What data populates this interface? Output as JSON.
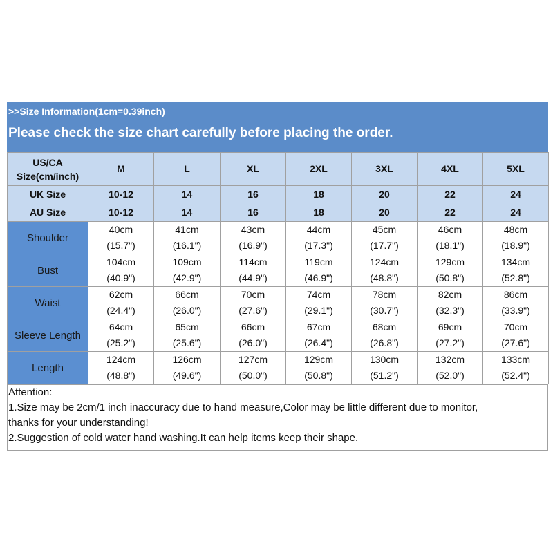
{
  "header": {
    "line1": ">>Size Information(1cm=0.39inch)",
    "line2": "Please check the size chart carefully before placing the order."
  },
  "table": {
    "corner": [
      "US/CA",
      "Size(cm/inch)"
    ],
    "sizes": [
      "M",
      "L",
      "XL",
      "2XL",
      "3XL",
      "4XL",
      "5XL"
    ],
    "size_rows": [
      {
        "label": "UK Size",
        "values": [
          "10-12",
          "14",
          "16",
          "18",
          "20",
          "22",
          "24"
        ]
      },
      {
        "label": "AU Size",
        "values": [
          "10-12",
          "14",
          "16",
          "18",
          "20",
          "22",
          "24"
        ]
      }
    ],
    "rows": [
      {
        "label": "Shoulder",
        "values": [
          [
            "40cm",
            "(15.7\")"
          ],
          [
            "41cm",
            "(16.1\")"
          ],
          [
            "43cm",
            "(16.9\")"
          ],
          [
            "44cm",
            "(17.3\")"
          ],
          [
            "45cm",
            "(17.7\")"
          ],
          [
            "46cm",
            "(18.1\")"
          ],
          [
            "48cm",
            "(18.9\")"
          ]
        ]
      },
      {
        "label": "Bust",
        "values": [
          [
            "104cm",
            "(40.9\")"
          ],
          [
            "109cm",
            "(42.9\")"
          ],
          [
            "114cm",
            "(44.9\")"
          ],
          [
            "119cm",
            "(46.9\")"
          ],
          [
            "124cm",
            "(48.8\")"
          ],
          [
            "129cm",
            "(50.8\")"
          ],
          [
            "134cm",
            "(52.8\")"
          ]
        ]
      },
      {
        "label": "Waist",
        "values": [
          [
            "62cm",
            "(24.4\")"
          ],
          [
            "66cm",
            "(26.0\")"
          ],
          [
            "70cm",
            "(27.6\")"
          ],
          [
            "74cm",
            "(29.1\")"
          ],
          [
            "78cm",
            "(30.7\")"
          ],
          [
            "82cm",
            "(32.3\")"
          ],
          [
            "86cm",
            "(33.9\")"
          ]
        ]
      },
      {
        "label": "Sleeve Length",
        "values": [
          [
            "64cm",
            "(25.2\")"
          ],
          [
            "65cm",
            "(25.6\")"
          ],
          [
            "66cm",
            "(26.0\")"
          ],
          [
            "67cm",
            "(26.4\")"
          ],
          [
            "68cm",
            "(26.8\")"
          ],
          [
            "69cm",
            "(27.2\")"
          ],
          [
            "70cm",
            "(27.6\")"
          ]
        ]
      },
      {
        "label": "Length",
        "values": [
          [
            "124cm",
            "(48.8\")"
          ],
          [
            "126cm",
            "(49.6\")"
          ],
          [
            "127cm",
            "(50.0\")"
          ],
          [
            "129cm",
            "(50.8\")"
          ],
          [
            "130cm",
            "(51.2\")"
          ],
          [
            "132cm",
            "(52.0\")"
          ],
          [
            "133cm",
            "(52.4\")"
          ]
        ]
      }
    ]
  },
  "notes": [
    "Attention:",
    "1.Size may be 2cm/1 inch inaccuracy due to hand measure,Color may be little different due to monitor,",
    "thanks for your understanding!",
    "2.Suggestion of cold water hand washing.It can help items keep their shape."
  ]
}
